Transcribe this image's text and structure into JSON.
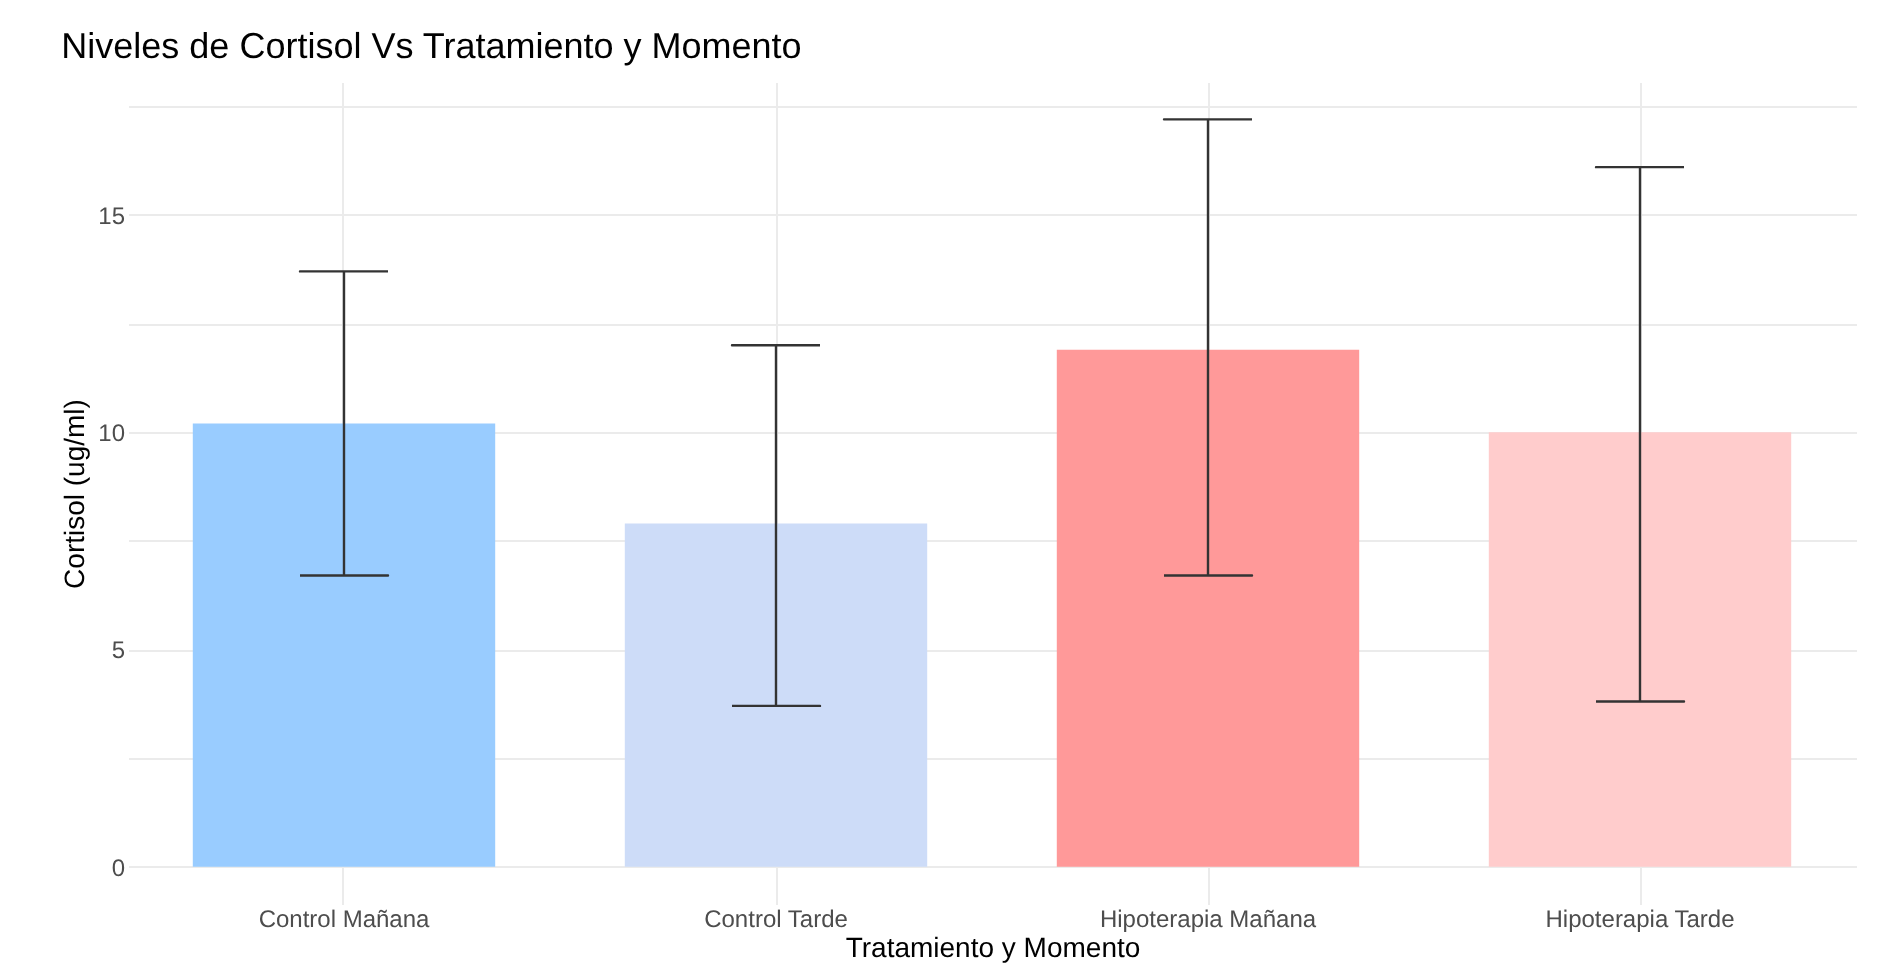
{
  "chart_data": {
    "type": "bar",
    "title": "Niveles de Cortisol Vs Tratamiento y Momento",
    "xlabel": "Tratamiento y Momento",
    "ylabel": "Cortisol (ug/ml)",
    "categories": [
      "Control Mañana",
      "Control Tarde",
      "Hipoterapia Mañana",
      "Hipoterapia Tarde"
    ],
    "values": [
      10.2,
      7.9,
      11.9,
      10.0
    ],
    "colors": [
      "#99ccff",
      "#cddcf8",
      "#ff9999",
      "#ffcccc"
    ],
    "errors": [
      [
        6.7,
        13.7
      ],
      [
        3.7,
        12.0
      ],
      [
        6.7,
        17.2
      ],
      [
        3.8,
        16.1
      ]
    ],
    "ylim": [
      -0.86,
      18.06
    ],
    "yticks": [
      0,
      {
        "value": 2.5,
        "label": null
      },
      5,
      {
        "value": 7.5,
        "label": null
      },
      10,
      {
        "value": 12.5,
        "label": null
      },
      15,
      {
        "value": 17.5,
        "label": null
      }
    ],
    "grid": true,
    "legend": false
  }
}
